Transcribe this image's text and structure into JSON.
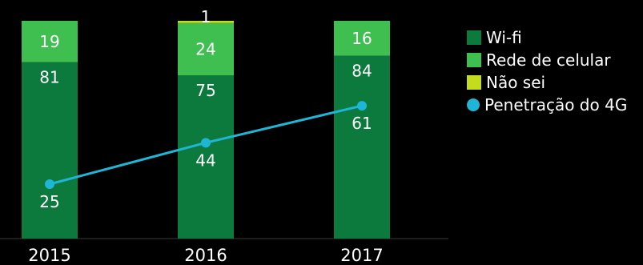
{
  "chart_data": {
    "type": "bar",
    "stacked": true,
    "categories": [
      "2015",
      "2016",
      "2017"
    ],
    "series": [
      {
        "name": "Wi-fi",
        "values": [
          81,
          75,
          84
        ],
        "color": "#0b7a3c"
      },
      {
        "name": "Rede de celular",
        "values": [
          19,
          24,
          16
        ],
        "color": "#3fbf4f"
      },
      {
        "name": "Não sei",
        "values": [
          0,
          1,
          0
        ],
        "color": "#c3dc1e"
      }
    ],
    "line_series": {
      "name": "Penetração do 4G",
      "values": [
        25,
        44,
        61
      ],
      "color": "#1fb5d6"
    },
    "ylim": [
      0,
      100
    ],
    "grid": false,
    "legend_position": "right",
    "title": "",
    "xlabel": "",
    "ylabel": ""
  }
}
